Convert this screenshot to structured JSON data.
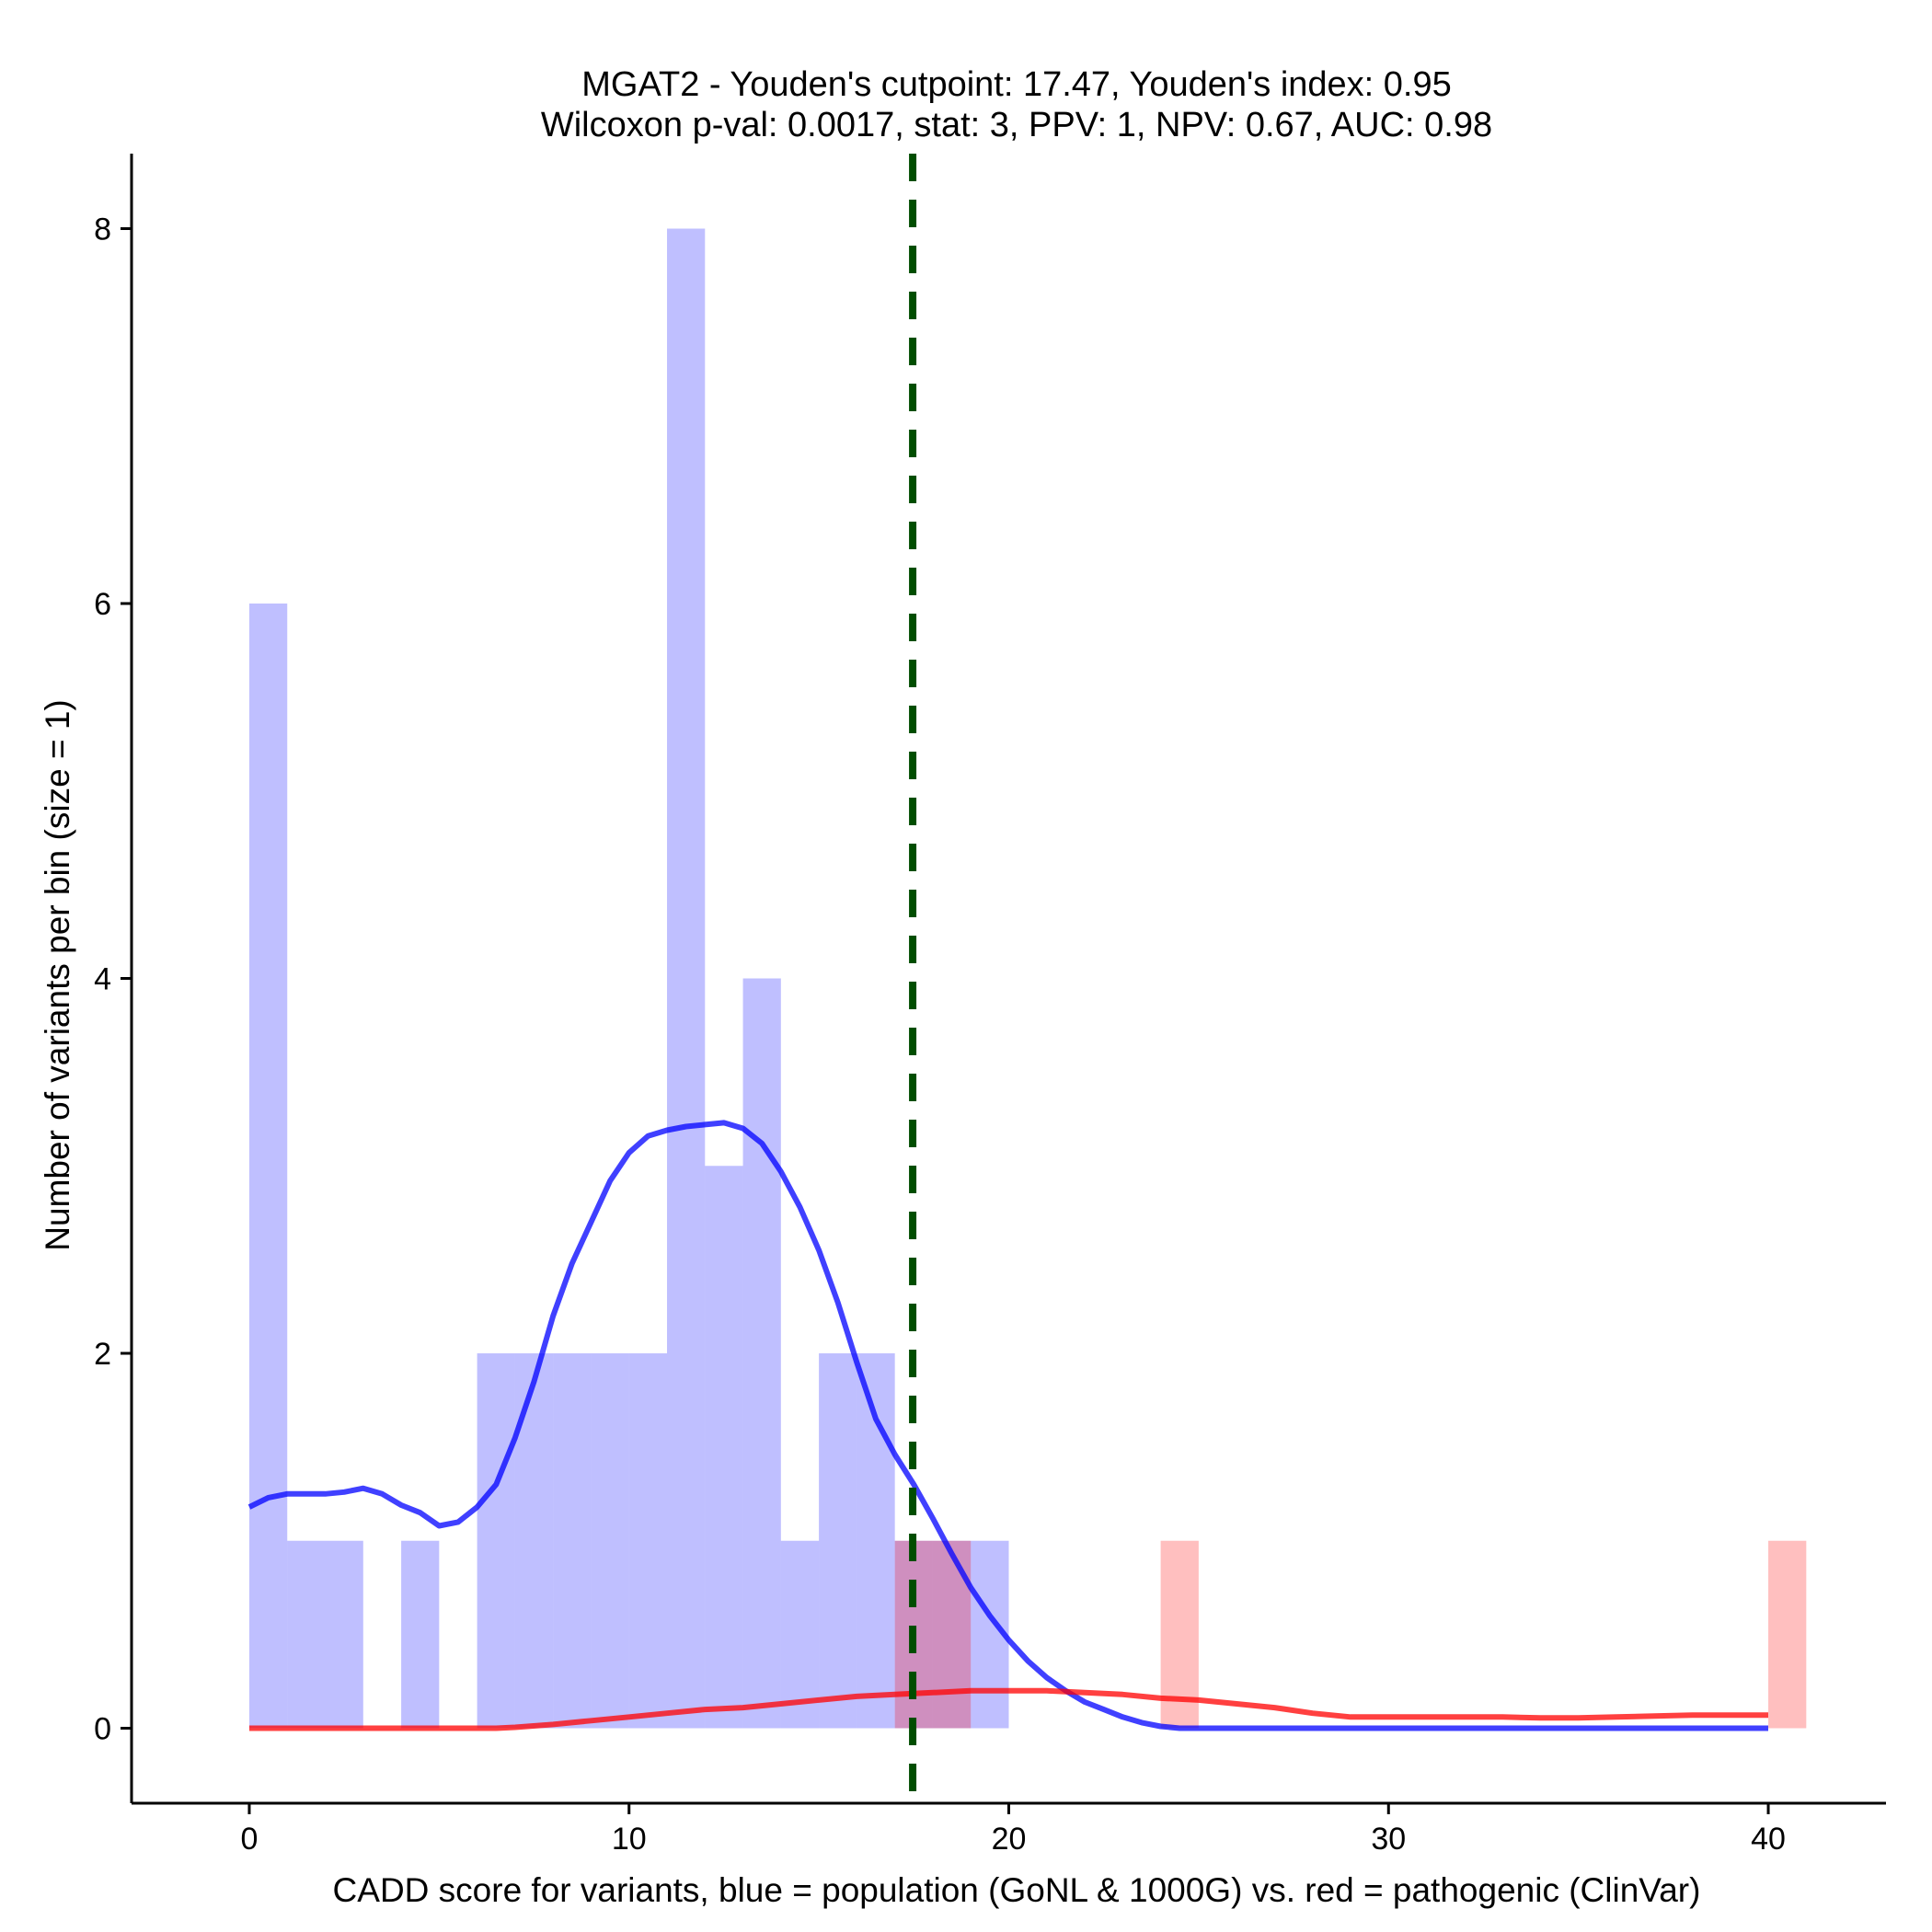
{
  "chart_data": {
    "type": "bar",
    "title": "MGAT2 - Youden's cutpoint: 17.47, Youden's index: 0.95",
    "subtitle": "Wilcoxon p-val: 0.0017, stat: 3, PPV: 1, NPV: 0.67, AUC: 0.98",
    "xlabel": "CADD score for variants, blue = population (GoNL & 1000G) vs. red = pathogenic (ClinVar)",
    "ylabel": "Number of variants per bin (size = 1)",
    "xlim": [
      -3.1,
      43.1
    ],
    "ylim": [
      -0.4,
      8.4
    ],
    "x_ticks": [
      0,
      10,
      20,
      30,
      40
    ],
    "y_ticks": [
      0,
      2,
      4,
      6,
      8
    ],
    "grid": false,
    "bin_size": 1,
    "colors": {
      "population": "#0000ff",
      "pathogenic": "#ff0000",
      "cutpoint": "#004d00"
    },
    "cutpoint": 17.47,
    "histograms": [
      {
        "group": "population",
        "bins": [
          [
            0,
            6
          ],
          [
            1,
            1
          ],
          [
            2,
            1
          ],
          [
            4,
            1
          ],
          [
            6,
            2
          ],
          [
            7,
            2
          ],
          [
            8,
            2
          ],
          [
            9,
            2
          ],
          [
            10,
            2
          ],
          [
            11,
            8
          ],
          [
            12,
            3
          ],
          [
            13,
            4
          ],
          [
            14,
            1
          ],
          [
            15,
            2
          ],
          [
            16,
            2
          ],
          [
            17,
            1
          ],
          [
            18,
            1
          ],
          [
            19,
            1
          ]
        ]
      },
      {
        "group": "pathogenic",
        "bins": [
          [
            17,
            1
          ],
          [
            18,
            1
          ],
          [
            24,
            1
          ],
          [
            40,
            1
          ]
        ]
      }
    ],
    "density_curves": [
      {
        "group": "population",
        "points": [
          [
            0,
            1.18
          ],
          [
            0.5,
            1.23
          ],
          [
            1,
            1.25
          ],
          [
            1.5,
            1.25
          ],
          [
            2,
            1.25
          ],
          [
            2.5,
            1.26
          ],
          [
            3,
            1.28
          ],
          [
            3.5,
            1.25
          ],
          [
            4,
            1.19
          ],
          [
            4.5,
            1.15
          ],
          [
            5,
            1.08
          ],
          [
            5.5,
            1.1
          ],
          [
            6,
            1.18
          ],
          [
            6.5,
            1.3
          ],
          [
            7,
            1.55
          ],
          [
            7.5,
            1.85
          ],
          [
            8,
            2.2
          ],
          [
            8.5,
            2.48
          ],
          [
            9,
            2.7
          ],
          [
            9.5,
            2.92
          ],
          [
            10,
            3.07
          ],
          [
            10.5,
            3.16
          ],
          [
            11,
            3.19
          ],
          [
            11.5,
            3.21
          ],
          [
            12,
            3.22
          ],
          [
            12.5,
            3.23
          ],
          [
            13,
            3.2
          ],
          [
            13.5,
            3.12
          ],
          [
            14,
            2.97
          ],
          [
            14.5,
            2.78
          ],
          [
            15,
            2.55
          ],
          [
            15.5,
            2.27
          ],
          [
            16,
            1.95
          ],
          [
            16.5,
            1.65
          ],
          [
            17,
            1.46
          ],
          [
            17.5,
            1.3
          ],
          [
            18,
            1.12
          ],
          [
            18.5,
            0.93
          ],
          [
            19,
            0.75
          ],
          [
            19.5,
            0.6
          ],
          [
            20,
            0.47
          ],
          [
            20.5,
            0.36
          ],
          [
            21,
            0.27
          ],
          [
            21.5,
            0.2
          ],
          [
            22,
            0.14
          ],
          [
            22.5,
            0.1
          ],
          [
            23,
            0.06
          ],
          [
            23.5,
            0.03
          ],
          [
            24,
            0.01
          ],
          [
            24.5,
            0
          ],
          [
            26,
            0
          ],
          [
            30,
            0
          ],
          [
            35,
            0
          ],
          [
            40,
            0
          ]
        ]
      },
      {
        "group": "pathogenic",
        "points": [
          [
            0,
            0
          ],
          [
            5,
            0
          ],
          [
            6.5,
            0
          ],
          [
            7,
            0.005
          ],
          [
            8,
            0.02
          ],
          [
            9,
            0.04
          ],
          [
            10,
            0.06
          ],
          [
            11,
            0.08
          ],
          [
            12,
            0.1
          ],
          [
            13,
            0.11
          ],
          [
            14,
            0.13
          ],
          [
            15,
            0.15
          ],
          [
            16,
            0.17
          ],
          [
            17,
            0.18
          ],
          [
            18,
            0.19
          ],
          [
            19,
            0.2
          ],
          [
            20,
            0.2
          ],
          [
            21,
            0.2
          ],
          [
            22,
            0.19
          ],
          [
            23,
            0.18
          ],
          [
            24,
            0.16
          ],
          [
            25,
            0.15
          ],
          [
            26,
            0.13
          ],
          [
            27,
            0.11
          ],
          [
            28,
            0.08
          ],
          [
            29,
            0.06
          ],
          [
            30,
            0.06
          ],
          [
            31,
            0.06
          ],
          [
            32,
            0.06
          ],
          [
            33,
            0.06
          ],
          [
            34,
            0.055
          ],
          [
            35,
            0.055
          ],
          [
            36,
            0.06
          ],
          [
            37,
            0.065
          ],
          [
            38,
            0.07
          ],
          [
            39,
            0.07
          ],
          [
            40,
            0.07
          ]
        ]
      }
    ]
  }
}
